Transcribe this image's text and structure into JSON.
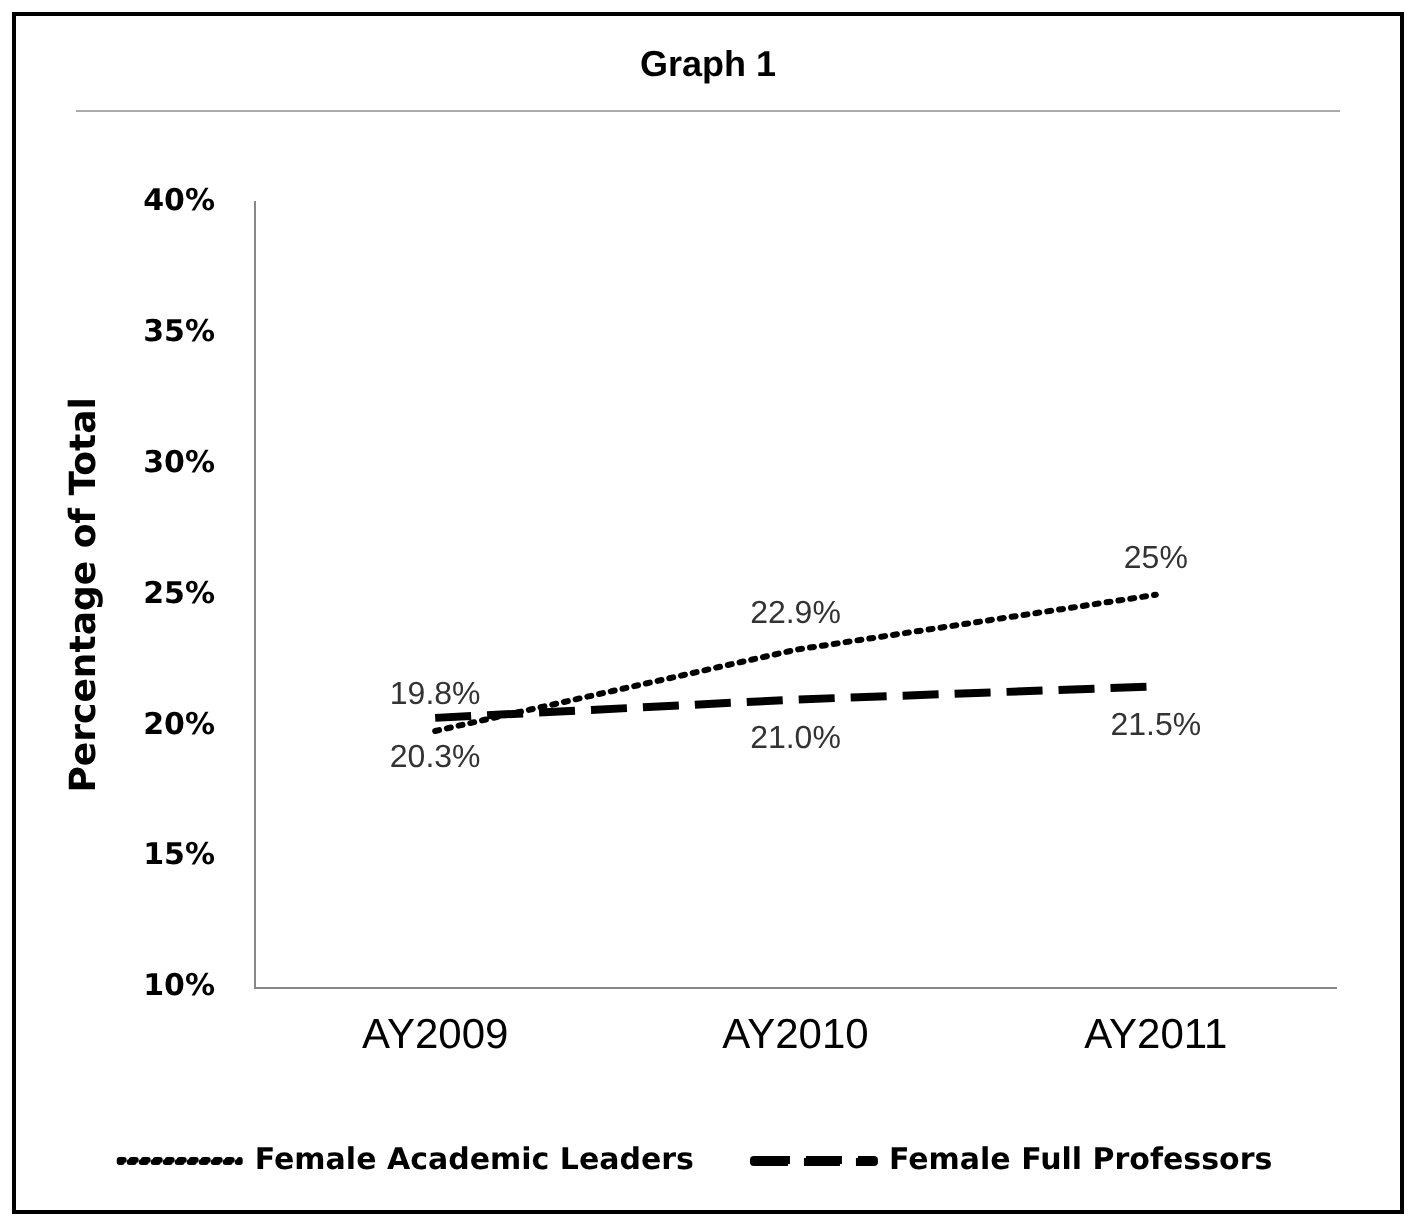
{
  "chart_data": {
    "type": "line",
    "title": "Graph 1",
    "ylabel": "Percentage of Total",
    "categories": [
      "AY2009",
      "AY2010",
      "AY2011"
    ],
    "series": [
      {
        "name": "Female Academic Leaders",
        "color": "#000000",
        "line_style": "dotted",
        "values": [
          19.8,
          22.9,
          25
        ],
        "value_labels": [
          "19.8%",
          "22.9%",
          "25%"
        ]
      },
      {
        "name": "Female Full Professors",
        "color": "#000000",
        "line_style": "dashed",
        "values": [
          20.3,
          21.0,
          21.5
        ],
        "value_labels": [
          "20.3%",
          "21.0%",
          "21.5%"
        ]
      }
    ],
    "ylim": [
      10,
      40
    ],
    "yticks": [
      {
        "value": 10,
        "label": "10%"
      },
      {
        "value": 15,
        "label": "15%"
      },
      {
        "value": 20,
        "label": "20%"
      },
      {
        "value": 25,
        "label": "25%"
      },
      {
        "value": 30,
        "label": "30%"
      },
      {
        "value": 35,
        "label": "35%"
      },
      {
        "value": 40,
        "label": "40%"
      }
    ],
    "grid": false,
    "legend": "bottom",
    "marker": "none"
  }
}
